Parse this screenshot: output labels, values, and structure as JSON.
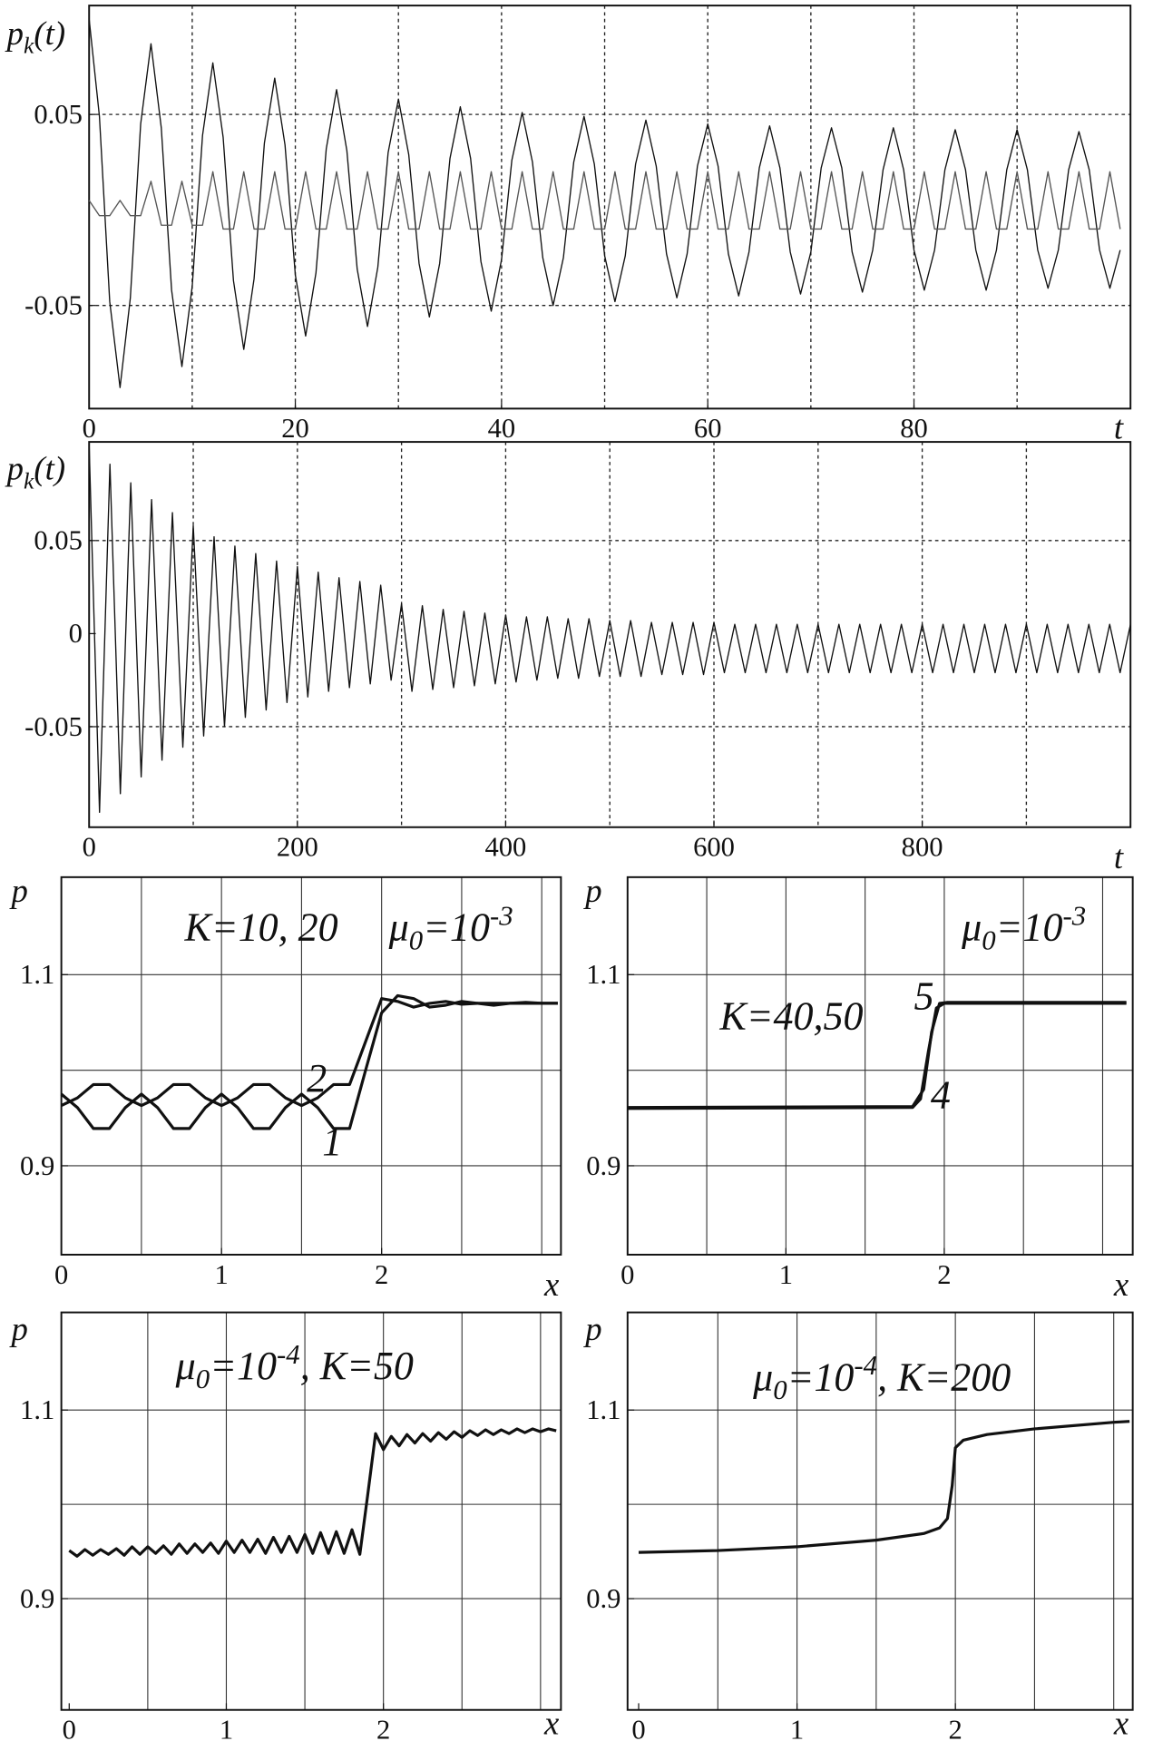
{
  "chart_data": [
    {
      "type": "line",
      "grid_style": "dotted",
      "y_label": [
        {
          "text": "p"
        },
        {
          "text": "k",
          "sub": true
        },
        {
          "text": "(t)"
        }
      ],
      "x_label": "t",
      "xlim": [
        0,
        101
      ],
      "ylim": [
        -0.104,
        0.107
      ],
      "xticks": [
        0,
        20,
        40,
        60,
        80
      ],
      "yticks": [
        -0.05,
        0.05
      ],
      "xgrid": [
        10,
        20,
        30,
        40,
        50,
        60,
        70,
        80,
        90
      ],
      "ygrid": [
        -0.05,
        0.05
      ],
      "x": [
        0,
        1,
        2,
        3,
        4,
        5,
        6,
        7,
        8,
        9,
        10,
        11,
        12,
        13,
        14,
        15,
        16,
        17,
        18,
        19,
        20,
        21,
        22,
        23,
        24,
        25,
        26,
        27,
        28,
        29,
        30,
        31,
        32,
        33,
        34,
        35,
        36,
        37,
        38,
        39,
        40,
        41,
        42,
        43,
        44,
        45,
        46,
        47,
        48,
        49,
        50,
        51,
        52,
        53,
        54,
        55,
        56,
        57,
        58,
        59,
        60,
        61,
        62,
        63,
        64,
        65,
        66,
        67,
        68,
        69,
        70,
        71,
        72,
        73,
        74,
        75,
        76,
        77,
        78,
        79,
        80,
        81,
        82,
        83,
        84,
        85,
        86,
        87,
        88,
        89,
        90,
        91,
        92,
        93,
        94,
        95,
        96,
        97,
        98,
        99,
        100
      ],
      "series": [
        {
          "color": "#111111",
          "values": [
            0.1,
            0.049,
            -0.048,
            -0.093,
            -0.046,
            0.045,
            0.087,
            0.043,
            -0.042,
            -0.082,
            -0.04,
            0.039,
            0.077,
            0.038,
            -0.037,
            -0.073,
            -0.036,
            0.035,
            0.069,
            0.034,
            -0.034,
            -0.066,
            -0.033,
            0.032,
            0.063,
            0.031,
            -0.031,
            -0.061,
            -0.03,
            0.03,
            0.058,
            0.029,
            -0.028,
            -0.056,
            -0.028,
            0.027,
            0.054,
            0.027,
            -0.027,
            -0.053,
            -0.026,
            0.026,
            0.051,
            0.025,
            -0.025,
            -0.05,
            -0.025,
            0.025,
            0.049,
            0.024,
            -0.024,
            -0.048,
            -0.024,
            0.024,
            0.047,
            0.023,
            -0.023,
            -0.046,
            -0.023,
            0.023,
            0.045,
            0.023,
            -0.023,
            -0.045,
            -0.022,
            0.022,
            0.044,
            0.022,
            -0.022,
            -0.044,
            -0.022,
            0.022,
            0.043,
            0.022,
            -0.022,
            -0.043,
            -0.021,
            0.021,
            0.043,
            0.021,
            -0.021,
            -0.042,
            -0.021,
            0.021,
            0.042,
            0.021,
            -0.021,
            -0.042,
            -0.021,
            0.021,
            0.042,
            0.021,
            -0.021,
            -0.041,
            -0.021,
            0.021,
            0.041,
            0.021,
            -0.021,
            -0.041,
            -0.021
          ]
        },
        {
          "color": "#555555",
          "values": [
            0.005,
            -0.003,
            -0.003,
            0.005,
            -0.003,
            -0.003,
            0.015,
            -0.008,
            -0.008,
            0.015,
            -0.008,
            -0.008,
            0.02,
            -0.01,
            -0.01,
            0.02,
            -0.01,
            -0.01,
            0.02,
            -0.01,
            -0.01,
            0.02,
            -0.01,
            -0.01,
            0.02,
            -0.01,
            -0.01,
            0.02,
            -0.01,
            -0.01,
            0.02,
            -0.01,
            -0.01,
            0.02,
            -0.01,
            -0.01,
            0.02,
            -0.01,
            -0.01,
            0.02,
            -0.01,
            -0.01,
            0.02,
            -0.01,
            -0.01,
            0.02,
            -0.01,
            -0.01,
            0.02,
            -0.01,
            -0.01,
            0.02,
            -0.01,
            -0.01,
            0.02,
            -0.01,
            -0.01,
            0.02,
            -0.01,
            -0.01,
            0.02,
            -0.01,
            -0.01,
            0.02,
            -0.01,
            -0.01,
            0.02,
            -0.01,
            -0.01,
            0.02,
            -0.01,
            -0.01,
            0.02,
            -0.01,
            -0.01,
            0.02,
            -0.01,
            -0.01,
            0.02,
            -0.01,
            -0.01,
            0.02,
            -0.01,
            -0.01,
            0.02,
            -0.01,
            -0.01,
            0.02,
            -0.01,
            -0.01,
            0.02,
            -0.01,
            -0.01,
            0.02,
            -0.01,
            -0.01,
            0.02,
            -0.01,
            -0.01,
            0.02,
            -0.01
          ]
        }
      ]
    },
    {
      "type": "line",
      "grid_style": "dotted",
      "y_label": [
        {
          "text": "p"
        },
        {
          "text": "k",
          "sub": true
        },
        {
          "text": "(t)"
        }
      ],
      "x_label": "t",
      "xlim": [
        0,
        1000
      ],
      "ylim": [
        -0.104,
        0.103
      ],
      "xticks": [
        0,
        200,
        400,
        600,
        800
      ],
      "yticks": [
        -0.05,
        0,
        0.05
      ],
      "xgrid": [
        100,
        200,
        300,
        400,
        500,
        600,
        700,
        800,
        900
      ],
      "ygrid": [
        -0.05,
        0.05
      ],
      "x": [
        0,
        10,
        20,
        30,
        40,
        50,
        60,
        70,
        80,
        90,
        100,
        110,
        120,
        130,
        140,
        150,
        160,
        170,
        180,
        190,
        200,
        210,
        220,
        230,
        240,
        250,
        260,
        270,
        280,
        290,
        300,
        310,
        320,
        330,
        340,
        350,
        360,
        370,
        380,
        390,
        400,
        410,
        420,
        430,
        440,
        450,
        460,
        470,
        480,
        490,
        500,
        510,
        520,
        530,
        540,
        550,
        560,
        570,
        580,
        590,
        600,
        610,
        620,
        630,
        640,
        650,
        660,
        670,
        680,
        690,
        700,
        710,
        720,
        730,
        740,
        750,
        760,
        770,
        780,
        790,
        800,
        810,
        820,
        830,
        840,
        850,
        860,
        870,
        880,
        890,
        900,
        910,
        920,
        930,
        940,
        950,
        960,
        970,
        980,
        990,
        1000
      ],
      "series": [
        {
          "color": "#111111",
          "values": [
            0.102,
            -0.096,
            0.091,
            -0.086,
            0.081,
            -0.077,
            0.072,
            -0.068,
            0.065,
            -0.061,
            0.058,
            -0.055,
            0.052,
            -0.05,
            0.047,
            -0.045,
            0.043,
            -0.041,
            0.039,
            -0.037,
            0.036,
            -0.034,
            0.033,
            -0.031,
            0.03,
            -0.029,
            0.028,
            -0.027,
            0.026,
            -0.025,
            0.016,
            -0.031,
            0.015,
            -0.03,
            0.013,
            -0.029,
            0.012,
            -0.028,
            0.011,
            -0.027,
            0.01,
            -0.026,
            0.009,
            -0.025,
            0.009,
            -0.024,
            0.008,
            -0.024,
            0.008,
            -0.023,
            0.007,
            -0.023,
            0.007,
            -0.023,
            0.006,
            -0.022,
            0.006,
            -0.022,
            0.006,
            -0.022,
            0.006,
            -0.021,
            0.005,
            -0.021,
            0.005,
            -0.021,
            0.005,
            -0.021,
            0.005,
            -0.021,
            0.005,
            -0.021,
            0.005,
            -0.021,
            0.005,
            -0.021,
            0.005,
            -0.021,
            0.005,
            -0.021,
            0.005,
            -0.021,
            0.005,
            -0.021,
            0.005,
            -0.021,
            0.005,
            -0.021,
            0.005,
            -0.021,
            0.005,
            -0.021,
            0.005,
            -0.021,
            0.005,
            -0.021,
            0.005,
            -0.021,
            0.005,
            -0.021,
            0.005
          ]
        }
      ]
    },
    {
      "type": "line",
      "grid_style": "solid",
      "y_label": [
        {
          "text": "p"
        }
      ],
      "x_label": "x",
      "xlim": [
        0,
        3.12
      ],
      "ylim": [
        0.807,
        1.202
      ],
      "xticks": [
        0,
        1,
        2
      ],
      "yticks": [
        0.9,
        1.1
      ],
      "xgrid": [
        0.5,
        1,
        1.5,
        2,
        2.5,
        3
      ],
      "ygrid": [
        0.9,
        1.0,
        1.1
      ],
      "x": [
        0,
        0.1,
        0.2,
        0.3,
        0.4,
        0.5,
        0.6,
        0.7,
        0.8,
        0.9,
        1.0,
        1.1,
        1.2,
        1.3,
        1.4,
        1.5,
        1.6,
        1.7,
        1.8,
        1.9,
        2.0,
        2.1,
        2.2,
        2.3,
        2.4,
        2.5,
        2.6,
        2.7,
        2.8,
        2.9,
        3.0,
        3.1
      ],
      "series": [
        {
          "name": "1",
          "color": "#111111",
          "values": [
            0.975,
            0.961,
            0.939,
            0.939,
            0.961,
            0.975,
            0.961,
            0.939,
            0.939,
            0.961,
            0.975,
            0.961,
            0.939,
            0.939,
            0.961,
            0.975,
            0.961,
            0.939,
            0.939,
            1.0,
            1.06,
            1.078,
            1.075,
            1.066,
            1.068,
            1.072,
            1.07,
            1.068,
            1.07,
            1.071,
            1.07,
            1.07
          ]
        },
        {
          "name": "2",
          "color": "#111111",
          "values": [
            0.963,
            0.971,
            0.985,
            0.985,
            0.971,
            0.963,
            0.971,
            0.985,
            0.985,
            0.971,
            0.963,
            0.971,
            0.985,
            0.985,
            0.971,
            0.963,
            0.971,
            0.985,
            0.985,
            1.03,
            1.075,
            1.072,
            1.066,
            1.07,
            1.072,
            1.069,
            1.07,
            1.07,
            1.07,
            1.07,
            1.07,
            1.07
          ]
        }
      ],
      "annotations": [
        {
          "parts": [
            {
              "text": "K=10, 20"
            }
          ]
        },
        {
          "parts": [
            {
              "text": "μ"
            },
            {
              "text": "0",
              "sub": true
            },
            {
              "text": "=10"
            },
            {
              "text": "-3",
              "sup": true
            }
          ]
        }
      ]
    },
    {
      "type": "line",
      "grid_style": "solid",
      "y_label": [
        {
          "text": "p"
        }
      ],
      "x_label": "x",
      "xlim": [
        0,
        3.19
      ],
      "ylim": [
        0.807,
        1.202
      ],
      "xticks": [
        0,
        1,
        2
      ],
      "yticks": [
        0.9,
        1.1
      ],
      "xgrid": [
        0.5,
        1,
        1.5,
        2,
        2.5,
        3
      ],
      "ygrid": [
        0.9,
        1.0,
        1.1
      ],
      "series": [
        {
          "name": "4",
          "color": "#111111",
          "x": [
            0,
            1.8,
            1.85,
            1.9,
            1.95,
            2.0,
            3.15
          ],
          "values": [
            0.96,
            0.961,
            0.97,
            1.02,
            1.065,
            1.07,
            1.07
          ]
        },
        {
          "name": "5",
          "color": "#111111",
          "x": [
            0,
            1.8,
            1.87,
            1.92,
            1.97,
            2.02,
            3.15
          ],
          "values": [
            0.961,
            0.962,
            0.98,
            1.04,
            1.07,
            1.071,
            1.071
          ]
        }
      ],
      "annotations": [
        {
          "parts": [
            {
              "text": "μ"
            },
            {
              "text": "0",
              "sub": true
            },
            {
              "text": "=10"
            },
            {
              "text": "-3",
              "sup": true
            }
          ]
        },
        {
          "parts": [
            {
              "text": "K=40,50"
            }
          ]
        }
      ]
    },
    {
      "type": "line",
      "grid_style": "solid",
      "y_label": [
        {
          "text": "p"
        }
      ],
      "x_label": "x",
      "xlim": [
        -0.05,
        3.13
      ],
      "ylim": [
        0.782,
        1.2035
      ],
      "xticks": [
        0,
        1,
        2
      ],
      "yticks": [
        0.9,
        1.1
      ],
      "xgrid": [
        0.5,
        1,
        1.5,
        2,
        2.5,
        3
      ],
      "ygrid": [
        0.9,
        1.0,
        1.1
      ],
      "x": [
        0,
        0.05,
        0.1,
        0.15,
        0.2,
        0.25,
        0.3,
        0.35,
        0.4,
        0.45,
        0.5,
        0.55,
        0.6,
        0.65,
        0.7,
        0.75,
        0.8,
        0.85,
        0.9,
        0.95,
        1.0,
        1.05,
        1.1,
        1.15,
        1.2,
        1.25,
        1.3,
        1.35,
        1.4,
        1.45,
        1.5,
        1.55,
        1.6,
        1.65,
        1.7,
        1.75,
        1.8,
        1.85,
        1.9,
        1.95,
        2.0,
        2.05,
        2.1,
        2.15,
        2.2,
        2.25,
        2.3,
        2.35,
        2.4,
        2.45,
        2.5,
        2.55,
        2.6,
        2.65,
        2.7,
        2.75,
        2.8,
        2.85,
        2.9,
        2.95,
        3.0,
        3.05,
        3.1
      ],
      "series": [
        {
          "color": "#111111",
          "values": [
            0.951,
            0.945,
            0.952,
            0.946,
            0.952,
            0.947,
            0.953,
            0.946,
            0.955,
            0.947,
            0.955,
            0.948,
            0.956,
            0.947,
            0.958,
            0.948,
            0.958,
            0.949,
            0.959,
            0.948,
            0.961,
            0.949,
            0.962,
            0.949,
            0.963,
            0.948,
            0.965,
            0.949,
            0.966,
            0.949,
            0.968,
            0.948,
            0.97,
            0.948,
            0.971,
            0.948,
            0.973,
            0.947,
            1.01,
            1.075,
            1.058,
            1.072,
            1.062,
            1.074,
            1.065,
            1.075,
            1.067,
            1.076,
            1.069,
            1.077,
            1.071,
            1.078,
            1.073,
            1.079,
            1.074,
            1.079,
            1.075,
            1.08,
            1.076,
            1.08,
            1.077,
            1.08,
            1.078
          ]
        }
      ],
      "annotations": [
        {
          "parts": [
            {
              "text": "μ"
            },
            {
              "text": "0",
              "sub": true
            },
            {
              "text": "=10"
            },
            {
              "text": "-4",
              "sup": true
            },
            {
              "text": ", K=50"
            }
          ]
        }
      ]
    },
    {
      "type": "line",
      "grid_style": "solid",
      "y_label": [
        {
          "text": "p"
        }
      ],
      "x_label": "x",
      "xlim": [
        -0.07,
        3.12
      ],
      "ylim": [
        0.782,
        1.2035
      ],
      "xticks": [
        0,
        1,
        2
      ],
      "yticks": [
        0.9,
        1.1
      ],
      "xgrid": [
        0.5,
        1,
        1.5,
        2,
        2.5,
        3
      ],
      "ygrid": [
        0.9,
        1.0,
        1.1
      ],
      "series": [
        {
          "color": "#111111",
          "x": [
            0,
            0.5,
            1,
            1.5,
            1.8,
            1.9,
            1.95,
            1.98,
            2.0,
            2.05,
            2.2,
            2.5,
            3,
            3.1
          ],
          "values": [
            0.949,
            0.951,
            0.955,
            0.962,
            0.969,
            0.975,
            0.985,
            1.02,
            1.06,
            1.068,
            1.074,
            1.08,
            1.087,
            1.088
          ]
        }
      ],
      "annotations": [
        {
          "parts": [
            {
              "text": "μ"
            },
            {
              "text": "0",
              "sub": true
            },
            {
              "text": "=10"
            },
            {
              "text": "-4",
              "sup": true
            },
            {
              "text": ", K=200"
            }
          ]
        }
      ]
    }
  ]
}
